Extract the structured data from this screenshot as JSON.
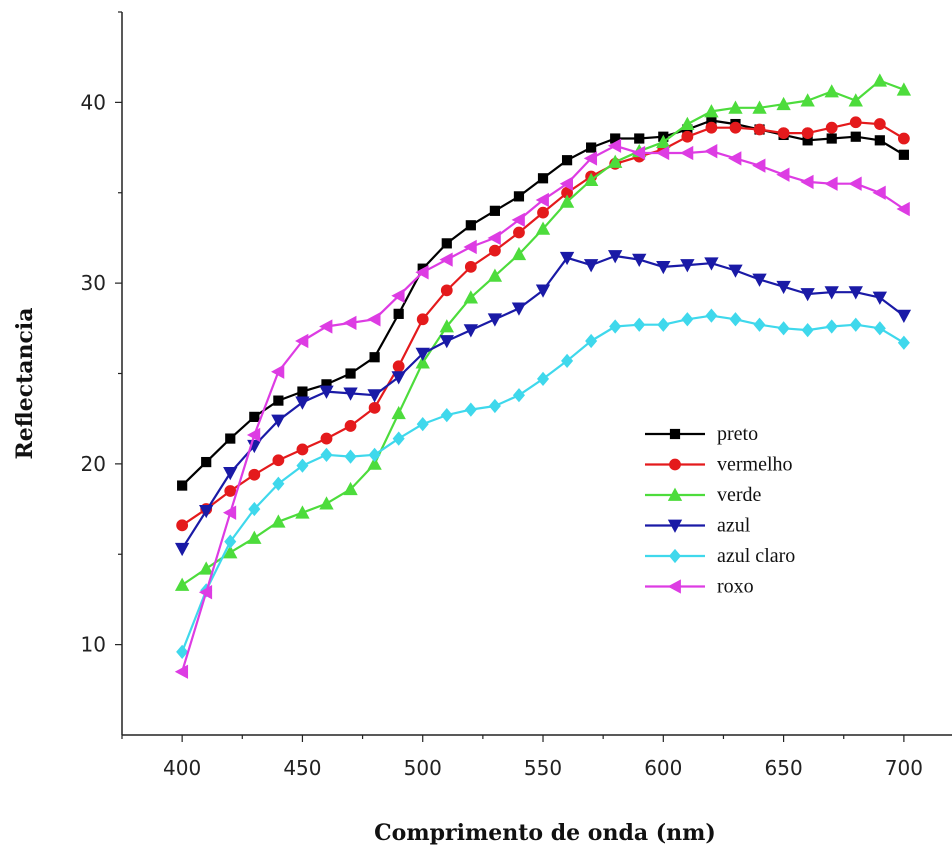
{
  "chart_data": {
    "type": "line",
    "xlabel": "Comprimento de onda (nm)",
    "ylabel": "Reflectancia",
    "xlim": [
      375,
      720
    ],
    "ylim": [
      5,
      45
    ],
    "xticks": [
      400,
      450,
      500,
      550,
      600,
      650,
      700
    ],
    "yticks": [
      10,
      20,
      30,
      40
    ],
    "grid": false,
    "legend_position": "center-right",
    "x": [
      400,
      410,
      420,
      430,
      440,
      450,
      460,
      470,
      480,
      490,
      500,
      510,
      520,
      530,
      540,
      550,
      560,
      570,
      580,
      590,
      600,
      610,
      620,
      630,
      640,
      650,
      660,
      670,
      680,
      690,
      700
    ],
    "series": [
      {
        "name": "preto",
        "color": "#000000",
        "marker": "square",
        "values": [
          18.8,
          20.1,
          21.4,
          22.6,
          23.5,
          24.0,
          24.4,
          25.0,
          25.9,
          28.3,
          30.8,
          32.2,
          33.2,
          34.0,
          34.8,
          35.8,
          36.8,
          37.5,
          38.0,
          38.0,
          38.1,
          38.5,
          39.0,
          38.8,
          38.5,
          38.2,
          37.9,
          38.0,
          38.1,
          37.9,
          37.1
        ]
      },
      {
        "name": "vermelho",
        "color": "#e41a1c",
        "marker": "circle",
        "values": [
          16.6,
          17.5,
          18.5,
          19.4,
          20.2,
          20.8,
          21.4,
          22.1,
          23.1,
          25.4,
          28.0,
          29.6,
          30.9,
          31.8,
          32.8,
          33.9,
          35.0,
          35.9,
          36.6,
          37.0,
          37.4,
          38.1,
          38.6,
          38.6,
          38.5,
          38.3,
          38.3,
          38.6,
          38.9,
          38.8,
          38.0
        ]
      },
      {
        "name": "verde",
        "color": "#4ddc3c",
        "marker": "triangle-up",
        "values": [
          13.3,
          14.2,
          15.1,
          15.9,
          16.8,
          17.3,
          17.8,
          18.6,
          20.0,
          22.8,
          25.6,
          27.6,
          29.2,
          30.4,
          31.6,
          33.0,
          34.5,
          35.7,
          36.7,
          37.3,
          37.8,
          38.8,
          39.5,
          39.7,
          39.7,
          39.9,
          40.1,
          40.6,
          40.1,
          41.2,
          40.7
        ]
      },
      {
        "name": "azul",
        "color": "#1a1aa6",
        "marker": "triangle-down",
        "values": [
          15.3,
          17.4,
          19.5,
          21.0,
          22.4,
          23.4,
          24.0,
          23.9,
          23.8,
          24.8,
          26.1,
          26.8,
          27.4,
          28.0,
          28.6,
          29.6,
          31.4,
          31.0,
          31.5,
          31.3,
          30.9,
          31.0,
          31.1,
          30.7,
          30.2,
          29.8,
          29.4,
          29.5,
          29.5,
          29.2,
          28.2
        ]
      },
      {
        "name": "azul claro",
        "color": "#3fd8ec",
        "marker": "diamond",
        "values": [
          9.6,
          13.0,
          15.7,
          17.5,
          18.9,
          19.9,
          20.5,
          20.4,
          20.5,
          21.4,
          22.2,
          22.7,
          23.0,
          23.2,
          23.8,
          24.7,
          25.7,
          26.8,
          27.6,
          27.7,
          27.7,
          28.0,
          28.2,
          28.0,
          27.7,
          27.5,
          27.4,
          27.6,
          27.7,
          27.5,
          26.7
        ]
      },
      {
        "name": "roxo",
        "color": "#dd3ce3",
        "marker": "triangle-left",
        "values": [
          8.5,
          12.9,
          17.3,
          21.6,
          25.1,
          26.8,
          27.6,
          27.8,
          28.0,
          29.3,
          30.6,
          31.3,
          32.0,
          32.5,
          33.5,
          34.6,
          35.5,
          36.9,
          37.6,
          37.2,
          37.2,
          37.2,
          37.3,
          36.9,
          36.5,
          36.0,
          35.6,
          35.5,
          35.5,
          35.0,
          34.1
        ]
      }
    ]
  }
}
